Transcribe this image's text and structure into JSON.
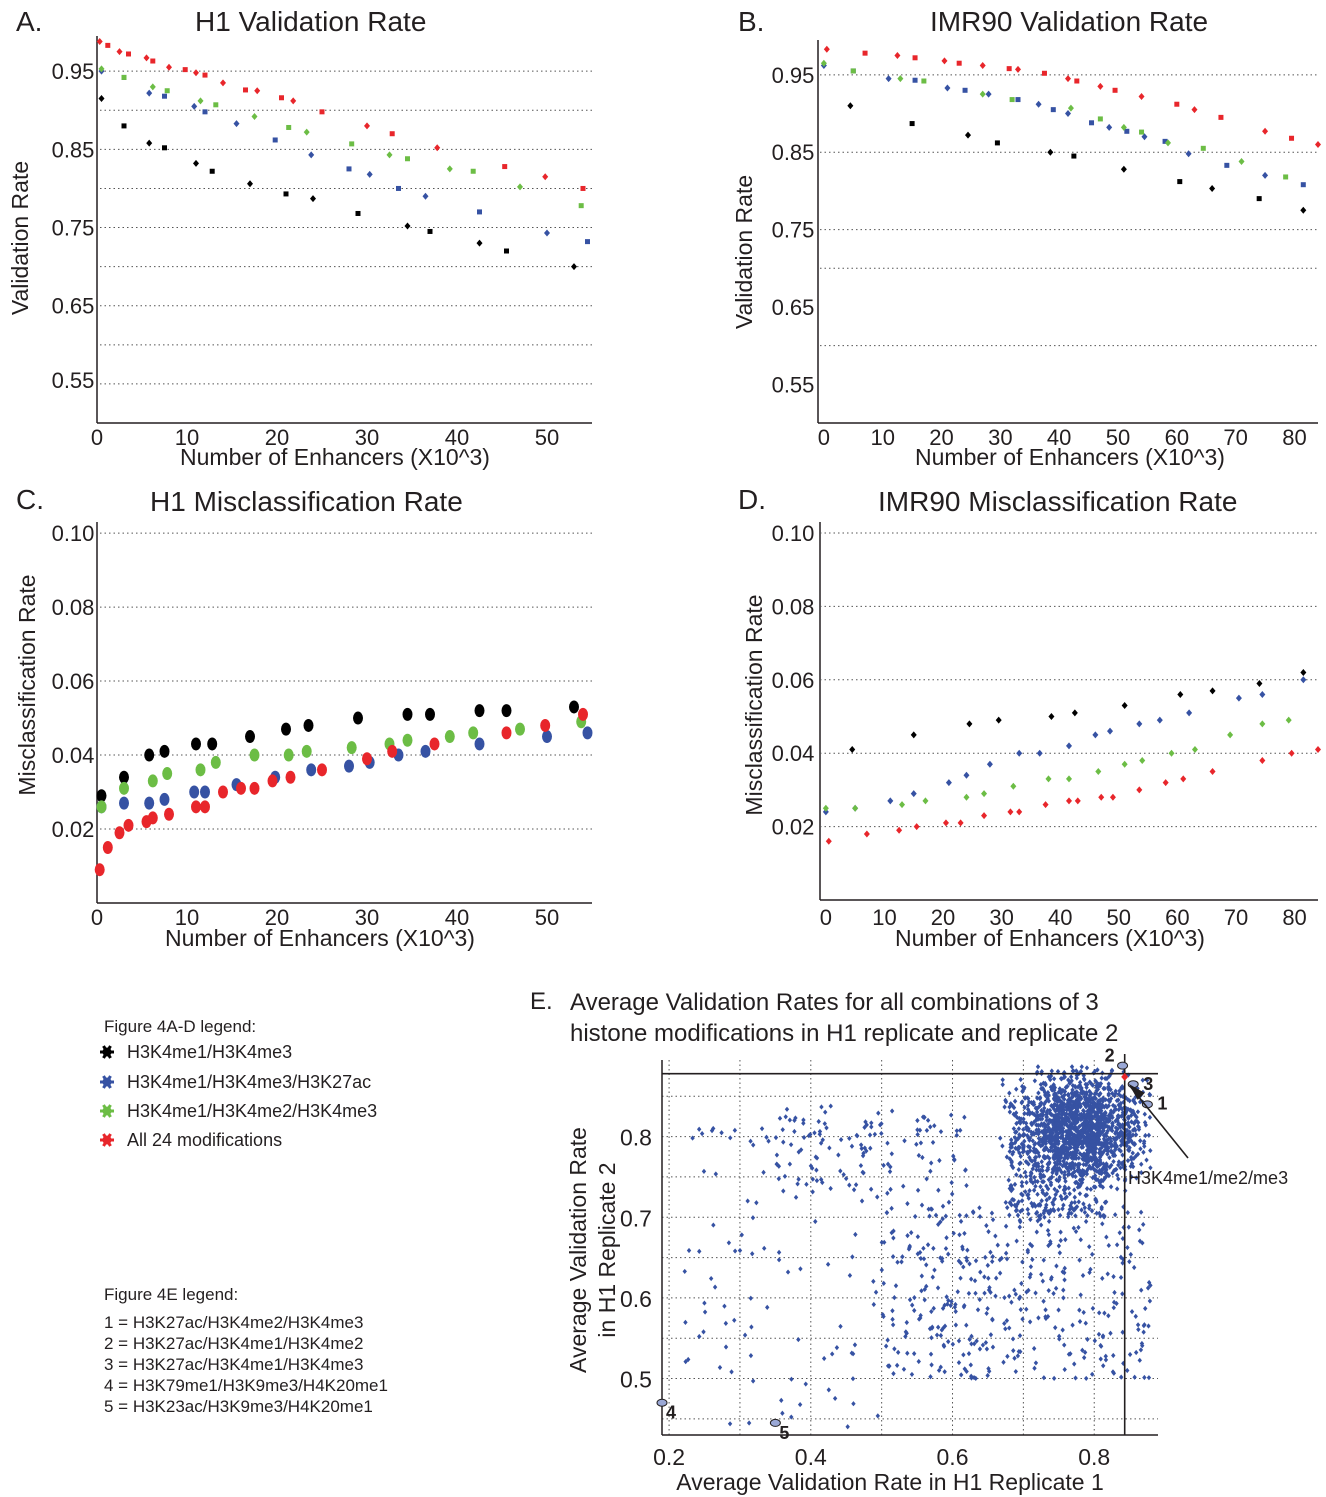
{
  "panel_labels": [
    "A.",
    "B.",
    "C.",
    "D.",
    "E."
  ],
  "colors": {
    "black": "#000000",
    "blue": "#3652a3",
    "green": "#6cbd45",
    "red": "#e8262b",
    "grid": "#555555",
    "scatter": "#3652a3"
  },
  "legend_ad": {
    "title": "Figure 4A-D legend:",
    "items": [
      {
        "label": "H3K4me1/H3K4me3",
        "color": "#000000"
      },
      {
        "label": "H3K4me1/H3K4me3/H3K27ac",
        "color": "#3652a3"
      },
      {
        "label": "H3K4me1/H3K4me2/H3K4me3",
        "color": "#6cbd45"
      },
      {
        "label": "All 24 modifications",
        "color": "#e8262b"
      }
    ]
  },
  "legend_e": {
    "title": "Figure 4E legend:",
    "lines": [
      "1 = H3K27ac/H3K4me2/H3K4me3",
      "2 = H3K27ac/H3K4me1/H3K4me2",
      "3 = H3K27ac/H3K4me1/H3K4me3",
      "4 = H3K79me1/H3K9me3/H4K20me1",
      "5 = H3K23ac/H3K9me3/H4K20me1"
    ]
  },
  "chart_data": [
    {
      "type": "scatter",
      "title": "H1 Validation Rate",
      "xlabel": "Number of Enhancers (X10^3)",
      "ylabel": "Validation Rate",
      "xticks": [
        0,
        10,
        20,
        30,
        40,
        50
      ],
      "yticks": [
        "0.95",
        "0.85",
        "0.75",
        "0.65",
        "0.55"
      ],
      "xlim": [
        0,
        55
      ],
      "ylim": [
        0.5,
        0.995
      ],
      "gridlines_y": [
        0.55,
        0.6,
        0.65,
        0.7,
        0.75,
        0.8,
        0.85,
        0.9,
        0.95
      ],
      "series": [
        {
          "color": "#000000",
          "x": [
            0.5,
            3,
            5.8,
            7.5,
            11,
            12.8,
            17,
            21,
            24,
            29,
            34.5,
            37,
            42.5,
            45.5,
            53
          ],
          "y": [
            0.915,
            0.88,
            0.858,
            0.852,
            0.832,
            0.822,
            0.806,
            0.793,
            0.787,
            0.768,
            0.752,
            0.745,
            0.73,
            0.72,
            0.7
          ]
        },
        {
          "color": "#3652a3",
          "x": [
            0.5,
            3,
            5.8,
            7.5,
            10.8,
            12,
            15.5,
            19.8,
            23.8,
            28,
            30.3,
            33.5,
            36.5,
            42.5,
            50,
            54.5
          ],
          "y": [
            0.95,
            0.942,
            0.922,
            0.918,
            0.905,
            0.898,
            0.883,
            0.862,
            0.843,
            0.825,
            0.818,
            0.8,
            0.79,
            0.77,
            0.743,
            0.732
          ]
        },
        {
          "color": "#6cbd45",
          "x": [
            0.5,
            3,
            6.2,
            7.8,
            11.5,
            13.2,
            17.5,
            21.3,
            23.3,
            28.3,
            32.5,
            34.5,
            39.2,
            41.8,
            47,
            53.8
          ],
          "y": [
            0.953,
            0.942,
            0.93,
            0.925,
            0.912,
            0.907,
            0.892,
            0.878,
            0.872,
            0.857,
            0.843,
            0.838,
            0.825,
            0.822,
            0.802,
            0.778
          ]
        },
        {
          "color": "#e8262b",
          "x": [
            0.3,
            1.2,
            2.5,
            3.5,
            5.5,
            6.2,
            8,
            9.8,
            11,
            12,
            14,
            16.5,
            17.8,
            20.5,
            21.8,
            25,
            30,
            32.8,
            37.8,
            45.3,
            49.8,
            54
          ]
        },
        {
          "color": "#e8262b",
          "y": [
            0.988,
            0.983,
            0.975,
            0.972,
            0.967,
            0.963,
            0.955,
            0.952,
            0.948,
            0.945,
            0.935,
            0.926,
            0.925,
            0.916,
            0.912,
            0.898,
            0.88,
            0.87,
            0.852,
            0.828,
            0.815,
            0.8
          ]
        }
      ]
    },
    {
      "type": "scatter",
      "title": "IMR90 Validation Rate",
      "xlabel": "Number of Enhancers (X10^3)",
      "ylabel": "Validation Rate",
      "xticks": [
        0,
        10,
        20,
        30,
        40,
        50,
        60,
        70,
        80
      ],
      "yticks": [
        "0.95",
        "0.85",
        "0.75",
        "0.65",
        "0.55"
      ],
      "xlim": [
        -1,
        84
      ],
      "ylim": [
        0.5,
        0.995
      ],
      "gridlines_y": [
        0.6,
        0.7,
        0.75,
        0.85,
        0.95
      ],
      "series": [
        {
          "color": "#000000",
          "x": [
            4.5,
            15,
            24.5,
            29.5,
            38.5,
            42.5,
            51,
            60.5,
            66,
            74,
            81.5
          ],
          "y": [
            0.91,
            0.887,
            0.872,
            0.862,
            0.85,
            0.845,
            0.828,
            0.812,
            0.803,
            0.79,
            0.775
          ]
        },
        {
          "color": "#3652a3",
          "x": [
            0,
            5,
            11,
            15.5,
            21,
            24,
            28,
            33,
            36.5,
            39,
            41.5,
            45.5,
            48.5,
            51.5,
            54.5,
            58,
            62,
            68.5,
            75,
            81.5
          ],
          "y": [
            0.962,
            0.955,
            0.945,
            0.943,
            0.933,
            0.93,
            0.925,
            0.918,
            0.912,
            0.905,
            0.9,
            0.888,
            0.882,
            0.877,
            0.87,
            0.864,
            0.848,
            0.833,
            0.82,
            0.808
          ]
        },
        {
          "color": "#6cbd45",
          "x": [
            0,
            5,
            13,
            17,
            27,
            32,
            42,
            47,
            51,
            54,
            58.5,
            64.5,
            71,
            78.5
          ],
          "y": [
            0.965,
            0.955,
            0.945,
            0.942,
            0.925,
            0.918,
            0.907,
            0.893,
            0.882,
            0.876,
            0.862,
            0.855,
            0.838,
            0.818
          ]
        },
        {
          "color": "#e8262b",
          "x": [
            0.5,
            7,
            12.5,
            15.5,
            20.5,
            23,
            27,
            31.5,
            33,
            37.5,
            41.5,
            43,
            47,
            49.5,
            54,
            60,
            63,
            67.5,
            75,
            79.5,
            84
          ],
          "y": [
            0.983,
            0.978,
            0.975,
            0.972,
            0.968,
            0.965,
            0.962,
            0.958,
            0.957,
            0.952,
            0.945,
            0.942,
            0.935,
            0.93,
            0.922,
            0.912,
            0.905,
            0.895,
            0.877,
            0.868,
            0.86
          ]
        }
      ]
    },
    {
      "type": "scatter",
      "title": "H1 Misclassification Rate",
      "xlabel": "Number of Enhancers (X10^3)",
      "ylabel": "Misclassification Rate",
      "xticks": [
        0,
        10,
        20,
        30,
        40,
        50
      ],
      "yticks": [
        "0.10",
        "0.08",
        "0.06",
        "0.04",
        "0.02"
      ],
      "xlim": [
        0,
        55
      ],
      "ylim": [
        0,
        0.103
      ],
      "gridlines_y": [
        0.02,
        0.04,
        0.06,
        0.08,
        0.1
      ],
      "series": [
        {
          "color": "#000000",
          "x": [
            0.5,
            3,
            5.8,
            7.5,
            11,
            12.8,
            17,
            21,
            23.5,
            29,
            34.5,
            37,
            42.5,
            45.5,
            53
          ],
          "y": [
            0.029,
            0.034,
            0.04,
            0.041,
            0.043,
            0.043,
            0.045,
            0.047,
            0.048,
            0.05,
            0.051,
            0.051,
            0.052,
            0.052,
            0.053
          ]
        },
        {
          "color": "#3652a3",
          "x": [
            0.5,
            3,
            5.8,
            7.5,
            10.8,
            12,
            15.5,
            19.8,
            23.8,
            28,
            30.3,
            33.5,
            36.5,
            42.5,
            50,
            54.5
          ],
          "y": [
            0.026,
            0.027,
            0.027,
            0.028,
            0.03,
            0.03,
            0.032,
            0.034,
            0.036,
            0.037,
            0.038,
            0.04,
            0.041,
            0.043,
            0.045,
            0.046
          ]
        },
        {
          "color": "#6cbd45",
          "x": [
            0.5,
            3,
            6.2,
            7.8,
            11.5,
            13.2,
            17.5,
            21.3,
            23.3,
            28.3,
            32.5,
            34.5,
            39.2,
            41.8,
            47,
            53.8
          ],
          "y": [
            0.026,
            0.031,
            0.033,
            0.035,
            0.036,
            0.038,
            0.04,
            0.04,
            0.041,
            0.042,
            0.043,
            0.044,
            0.045,
            0.046,
            0.047,
            0.049
          ]
        },
        {
          "color": "#e8262b",
          "x": [
            0.3,
            1.2,
            2.5,
            3.5,
            5.5,
            6.2,
            8,
            11,
            12,
            14,
            16,
            17.5,
            19.5,
            21.5,
            25,
            30,
            32.8,
            37.5,
            45.5,
            49.8,
            54
          ],
          "y": [
            0.009,
            0.015,
            0.019,
            0.021,
            0.022,
            0.023,
            0.024,
            0.026,
            0.026,
            0.03,
            0.031,
            0.031,
            0.033,
            0.034,
            0.036,
            0.039,
            0.041,
            0.043,
            0.046,
            0.048,
            0.051
          ]
        }
      ]
    },
    {
      "type": "scatter",
      "title": "IMR90 Misclassification Rate",
      "xlabel": "Number of Enhancers (X10^3)",
      "ylabel": "Misclassification Rate",
      "xticks": [
        0,
        10,
        20,
        30,
        40,
        50,
        60,
        70,
        80
      ],
      "yticks": [
        "0.10",
        "0.08",
        "0.06",
        "0.04",
        "0.02"
      ],
      "xlim": [
        -1,
        84
      ],
      "ylim": [
        0,
        0.103
      ],
      "gridlines_y": [
        0.02,
        0.04,
        0.06,
        0.08,
        0.1
      ],
      "series": [
        {
          "color": "#000000",
          "x": [
            4.5,
            15,
            24.5,
            29.5,
            38.5,
            42.5,
            51,
            60.5,
            66,
            74,
            81.5
          ],
          "y": [
            0.041,
            0.045,
            0.048,
            0.049,
            0.05,
            0.051,
            0.053,
            0.056,
            0.057,
            0.059,
            0.062
          ]
        },
        {
          "color": "#3652a3",
          "x": [
            0,
            5,
            11,
            15,
            21,
            24,
            28,
            33,
            36.5,
            41.5,
            46,
            48.5,
            53.5,
            57,
            62,
            70.5,
            74.5,
            81.5
          ],
          "y": [
            0.024,
            0.025,
            0.027,
            0.029,
            0.032,
            0.034,
            0.037,
            0.04,
            0.04,
            0.042,
            0.045,
            0.046,
            0.048,
            0.049,
            0.051,
            0.055,
            0.056,
            0.06
          ]
        },
        {
          "color": "#6cbd45",
          "x": [
            0,
            5,
            13,
            17,
            24,
            27,
            32,
            38,
            41.5,
            46.5,
            51,
            54,
            59,
            63,
            69,
            74.5,
            79
          ],
          "y": [
            0.025,
            0.025,
            0.026,
            0.027,
            0.028,
            0.029,
            0.031,
            0.033,
            0.033,
            0.035,
            0.037,
            0.038,
            0.04,
            0.041,
            0.045,
            0.048,
            0.049
          ]
        },
        {
          "color": "#e8262b",
          "x": [
            0.5,
            7,
            12.5,
            15.5,
            20.5,
            23,
            27,
            31.5,
            33,
            37.5,
            41.5,
            43,
            47,
            49,
            53.5,
            58,
            61,
            66,
            74.5,
            79.5,
            84
          ],
          "y": [
            0.016,
            0.018,
            0.019,
            0.02,
            0.021,
            0.021,
            0.023,
            0.024,
            0.024,
            0.026,
            0.027,
            0.027,
            0.028,
            0.028,
            0.03,
            0.032,
            0.033,
            0.035,
            0.038,
            0.04,
            0.041
          ]
        }
      ]
    },
    {
      "type": "scatter",
      "title_lines": [
        "Average Validation Rates for all combinations of 3",
        "histone modifications in H1 replicate and replicate 2"
      ],
      "xlabel": "Average Validation Rate in H1 Replicate 1",
      "ylabel_lines": [
        "Average Validation Rate",
        "in H1 Replicate 2"
      ],
      "xticks": [
        "0.2",
        "0.4",
        "0.6",
        "0.8"
      ],
      "yticks": [
        "0.8",
        "0.7",
        "0.6",
        "0.5"
      ],
      "xlim": [
        0.19,
        0.89
      ],
      "ylim": [
        0.43,
        0.895
      ],
      "color": "#3652a3",
      "reference_lines": {
        "x": 0.843,
        "y": 0.878
      },
      "labeled_points": [
        {
          "label": "1",
          "x": 0.875,
          "y": 0.84
        },
        {
          "label": "2",
          "x": 0.84,
          "y": 0.888
        },
        {
          "label": "3",
          "x": 0.855,
          "y": 0.865
        },
        {
          "label": "4",
          "x": 0.19,
          "y": 0.47
        },
        {
          "label": "5",
          "x": 0.35,
          "y": 0.445
        }
      ],
      "highlight": {
        "label": "H3K4me1/me2/me3",
        "x": 0.843,
        "y": 0.874,
        "color": "#e8262b"
      },
      "clusters": [
        {
          "x": [
            0.62,
            0.88
          ],
          "y": [
            0.7,
            0.885
          ],
          "n": 1500
        },
        {
          "x": [
            0.68,
            0.82
          ],
          "y": [
            0.7,
            0.8
          ],
          "n": 300
        },
        {
          "x": [
            0.35,
            0.62
          ],
          "y": [
            0.72,
            0.84
          ],
          "n": 120
        },
        {
          "x": [
            0.5,
            0.88
          ],
          "y": [
            0.5,
            0.72
          ],
          "n": 420
        },
        {
          "x": [
            0.22,
            0.5
          ],
          "y": [
            0.44,
            0.82
          ],
          "n": 100
        }
      ]
    }
  ]
}
